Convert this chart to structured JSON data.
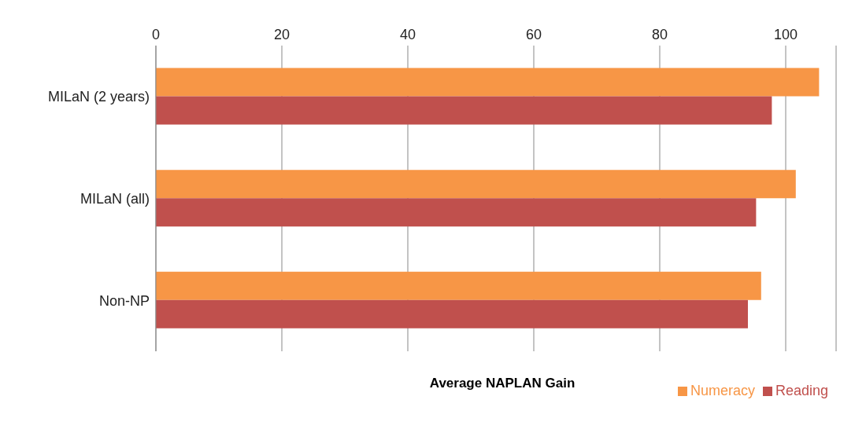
{
  "chart_data": {
    "type": "bar",
    "orientation": "horizontal",
    "xlabel": "Average NAPLAN Gain",
    "categories": [
      "MILaN (2 years)",
      "MILaN (all)",
      "Non-NP"
    ],
    "series": [
      {
        "name": "Numeracy",
        "color": "#f79646",
        "values": [
          105.3,
          101.6,
          96.1
        ]
      },
      {
        "name": "Reading",
        "color": "#c0504d",
        "values": [
          97.8,
          95.3,
          94.0
        ]
      }
    ],
    "xlim": [
      0,
      108
    ],
    "xticks": [
      0,
      20,
      40,
      60,
      80,
      100
    ],
    "grid": "x",
    "legend": "bottom right"
  }
}
